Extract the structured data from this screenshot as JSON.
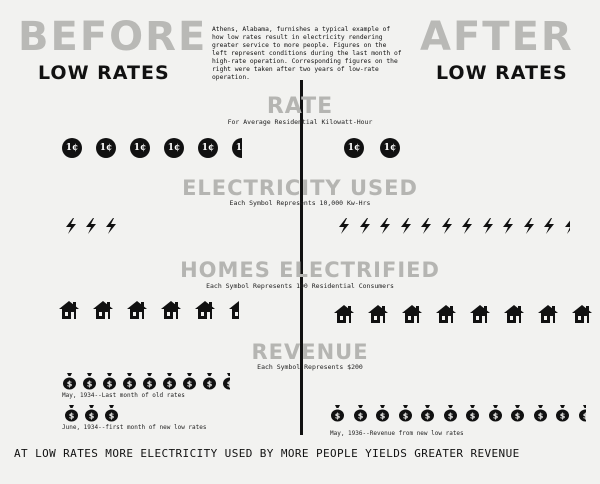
{
  "header": {
    "before_title": "BEFORE",
    "before_subtitle": "LOW RATES",
    "after_title": "AFTER",
    "after_subtitle": "LOW RATES",
    "intro_text": "Athens, Alabama, furnishes a typical example of how low rates result in electricity rendering greater service to more people. Figures on the left represent conditions during the last month of high-rate operation. Corresponding figures on the right were taken after two years of low-rate operation."
  },
  "sections": {
    "rate": {
      "title": "RATE",
      "subtitle": "For Average Residential Kilowatt-Hour",
      "before_count": 5.5,
      "after_count": 2,
      "symbol": "1¢"
    },
    "electricity": {
      "title": "ELECTRICITY USED",
      "subtitle": "Each Symbol Represents 10,000 Kw-Hrs",
      "before_count": 3,
      "after_count": 11.5
    },
    "homes": {
      "title": "HOMES ELECTRIFIED",
      "subtitle": "Each Symbol Represents 100 Residential Consumers",
      "before_count": 5.5,
      "after_count": 8
    },
    "revenue": {
      "title": "REVENUE",
      "subtitle": "Each Symbol Represents $200",
      "before_row1_count": 8.5,
      "before_row1_caption": "May, 1934--Last month of old rates",
      "before_row2_count": 3,
      "before_row2_caption": "June, 1934--first month of new low rates",
      "after_count": 11.5,
      "after_caption": "May, 1936--Revenue from new low rates"
    }
  },
  "footer": {
    "text": "AT LOW RATES MORE ELECTRICITY USED BY MORE PEOPLE YIELDS GREATER REVENUE"
  }
}
